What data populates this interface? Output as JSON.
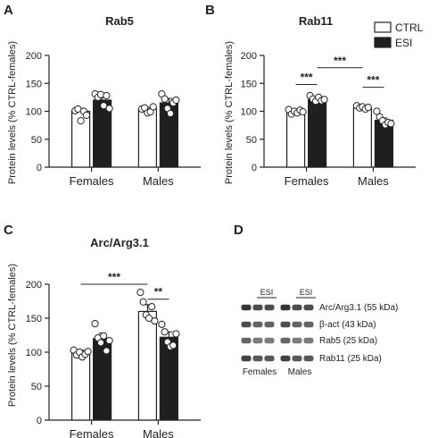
{
  "colors": {
    "ctrl": "#ffffff",
    "esi": "#1f1f1f",
    "stroke": "#222222"
  },
  "legend": {
    "ctrl_label": "CTRL",
    "esi_label": "ESI"
  },
  "chart_data": [
    {
      "type": "bar",
      "panel_letter": "A",
      "title": "Rab5",
      "ylabel": "Protein levels (% CTRL-females)",
      "ylim": [
        0,
        200
      ],
      "yticks": [
        0,
        50,
        100,
        150,
        200
      ],
      "categories": [
        "Females",
        "Males"
      ],
      "series": [
        {
          "name": "CTRL",
          "values": [
            100,
            104
          ],
          "errors": [
            5,
            3
          ],
          "points": [
            [
              101,
              104,
              83,
              100,
              93
            ],
            [
              104,
              106,
              97,
              99,
              108
            ]
          ]
        },
        {
          "name": "ESI",
          "values": [
            120,
            115
          ],
          "errors": [
            5,
            8
          ],
          "points": [
            [
              131,
              125,
              130,
              110,
              128,
              105
            ],
            [
              131,
              122,
              105,
              96,
              115,
              120
            ]
          ]
        }
      ],
      "significance": []
    },
    {
      "type": "bar",
      "panel_letter": "B",
      "title": "Rab11",
      "ylabel": "Protein levels (% CTRL-females)",
      "ylim": [
        0,
        200
      ],
      "yticks": [
        0,
        50,
        100,
        150,
        200
      ],
      "categories": [
        "Females",
        "Males"
      ],
      "series": [
        {
          "name": "CTRL",
          "values": [
            100,
            106
          ],
          "errors": [
            2,
            2
          ],
          "points": [
            [
              103,
              95,
              100,
              97,
              102,
              99
            ],
            [
              110,
              106,
              108,
              104,
              107
            ]
          ]
        },
        {
          "name": "ESI",
          "values": [
            121,
            84
          ],
          "errors": [
            2,
            4
          ],
          "points": [
            [
              128,
              122,
              118,
              125,
              119,
              121
            ],
            [
              100,
              90,
              83,
              76,
              80,
              78
            ]
          ]
        }
      ],
      "significance": [
        {
          "label": "***",
          "from": [
            0,
            0
          ],
          "to": [
            0,
            1
          ],
          "y": 148
        },
        {
          "label": "***",
          "from": [
            0,
            1
          ],
          "to": [
            1,
            0
          ],
          "y": 178
        },
        {
          "label": "***",
          "from": [
            1,
            0
          ],
          "to": [
            1,
            1
          ],
          "y": 143
        }
      ]
    },
    {
      "type": "bar",
      "panel_letter": "C",
      "title": "Arc/Arg3.1",
      "ylabel": "Protein levels (% CTRL-females)",
      "ylim": [
        0,
        200
      ],
      "yticks": [
        0,
        50,
        100,
        150,
        200
      ],
      "categories": [
        "Females",
        "Males"
      ],
      "series": [
        {
          "name": "CTRL",
          "values": [
            100,
            160
          ],
          "errors": [
            3,
            10
          ],
          "points": [
            [
              103,
              96,
              100,
              93,
              97,
              101
            ],
            [
              188,
              174,
              155,
              150,
              167,
              146
            ]
          ]
        },
        {
          "name": "ESI",
          "values": [
            120,
            122
          ],
          "errors": [
            8,
            8
          ],
          "points": [
            [
              142,
              121,
              114,
              124,
              102,
              117
            ],
            [
              141,
              130,
              115,
              108,
              110,
              127
            ]
          ]
        }
      ],
      "significance": [
        {
          "label": "***",
          "from": [
            0,
            0
          ],
          "to": [
            1,
            0
          ],
          "y": 200
        },
        {
          "label": "**",
          "from": [
            1,
            0
          ],
          "to": [
            1,
            1
          ],
          "y": 178
        }
      ]
    }
  ],
  "blot": {
    "panel_letter": "D",
    "esi_label": "ESI",
    "proteins": [
      "Arc/Arg3.1 (55 kDa)",
      "β-act (43 kDa)",
      "Rab5 (25 kDa)",
      "Rab11 (25 kDa)"
    ],
    "groups": [
      "Females",
      "Males"
    ]
  }
}
